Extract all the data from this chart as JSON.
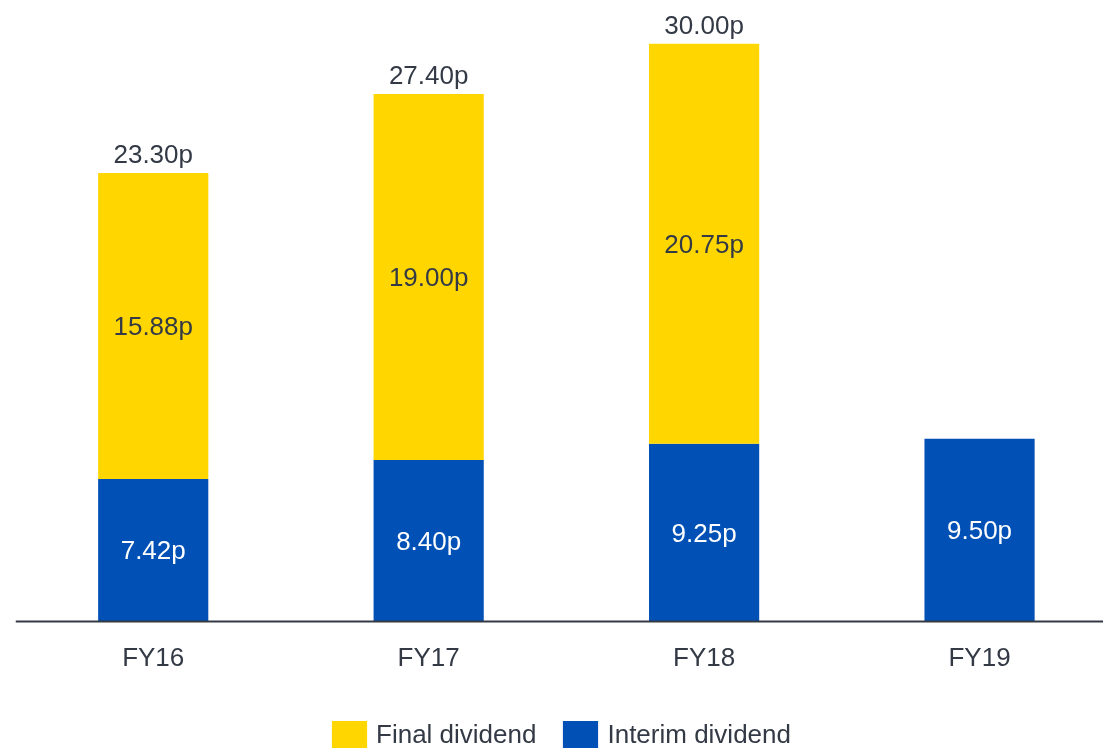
{
  "chart_data": {
    "type": "bar",
    "stacked": true,
    "categories": [
      "FY16",
      "FY17",
      "FY18",
      "FY19"
    ],
    "tick_labels": "x",
    "legend": "bottom",
    "series": [
      {
        "name": "Interim dividend",
        "color": "#0050b5",
        "values": [
          7.42,
          8.4,
          9.25,
          9.5
        ],
        "value_labels": [
          "7.42p",
          "8.40p",
          "9.25p",
          "9.50p"
        ]
      },
      {
        "name": "Final dividend",
        "color": "#ffd600",
        "values": [
          15.88,
          19.0,
          20.75,
          null
        ],
        "value_labels": [
          "15.88p",
          "19.00p",
          "20.75p",
          null
        ]
      }
    ],
    "totals": [
      "23.30p",
      "27.40p",
      "30.00p",
      null
    ]
  }
}
